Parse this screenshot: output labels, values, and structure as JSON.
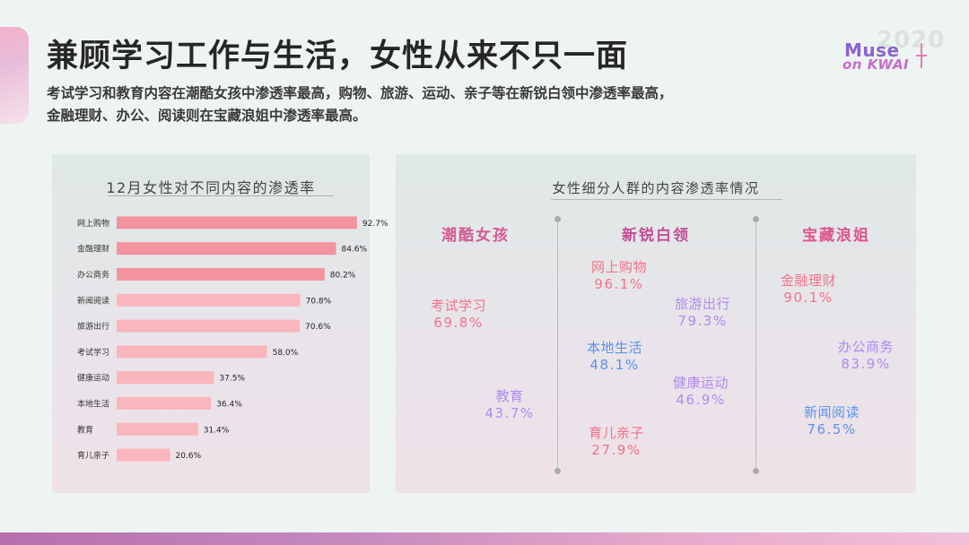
{
  "header": {
    "title": "兼顾学习工作与生活，女性从来不只一面",
    "subtitle_line1": "考试学习和教育内容在潮酷女孩中渗透率最高，购物、旅游、运动、亲子等在新锐白领中渗透率最高，",
    "subtitle_line2": "金融理财、办公、阅读则在宝藏浪姐中渗透率最高。"
  },
  "logo": {
    "year": "2020",
    "line1": "Muse",
    "line2": "on KWAI"
  },
  "colors": {
    "bar_top": "#f2939f",
    "bar_rest": "#f9b6bc",
    "pink_text": "#f4728a",
    "purple_text": "#b18af0",
    "blue_text": "#5b92ee"
  },
  "chart_data": [
    {
      "type": "bar",
      "orientation": "horizontal",
      "title": "12月女性对不同内容的渗透率",
      "categories": [
        "网上购物",
        "金融理财",
        "办公商务",
        "新闻阅读",
        "旅游出行",
        "考试学习",
        "健康运动",
        "本地生活",
        "教育",
        "育儿亲子"
      ],
      "values": [
        92.7,
        84.6,
        80.2,
        70.8,
        70.6,
        58.0,
        37.5,
        36.4,
        31.4,
        20.6
      ],
      "value_labels": [
        "92.7%",
        "84.6%",
        "80.2%",
        "70.8%",
        "70.6%",
        "58.0%",
        "37.5%",
        "36.4%",
        "31.4%",
        "20.6%"
      ],
      "unit": "%",
      "xlim": [
        0,
        100
      ],
      "highlight_top_n": 3
    },
    {
      "type": "table",
      "title": "女性细分人群的内容渗透率情况",
      "segments": [
        {
          "name": "潮酷女孩",
          "color": "#d65a92",
          "items": [
            {
              "label": "考试学习",
              "value": "69.8%",
              "color": "#f4728a"
            },
            {
              "label": "教育",
              "value": "43.7%",
              "color": "#b18af0"
            }
          ]
        },
        {
          "name": "新锐白领",
          "color": "#c44e97",
          "items": [
            {
              "label": "网上购物",
              "value": "96.1%",
              "color": "#f4728a"
            },
            {
              "label": "旅游出行",
              "value": "79.3%",
              "color": "#b18af0"
            },
            {
              "label": "本地生活",
              "value": "48.1%",
              "color": "#5b92ee"
            },
            {
              "label": "健康运动",
              "value": "46.9%",
              "color": "#b18af0"
            },
            {
              "label": "育儿亲子",
              "value": "27.9%",
              "color": "#f4728a"
            }
          ]
        },
        {
          "name": "宝藏浪姐",
          "color": "#e0538c",
          "items": [
            {
              "label": "金融理财",
              "value": "90.1%",
              "color": "#f4728a"
            },
            {
              "label": "办公商务",
              "value": "83.9%",
              "color": "#b18af0"
            },
            {
              "label": "新闻阅读",
              "value": "76.5%",
              "color": "#5b92ee"
            }
          ]
        }
      ]
    }
  ]
}
